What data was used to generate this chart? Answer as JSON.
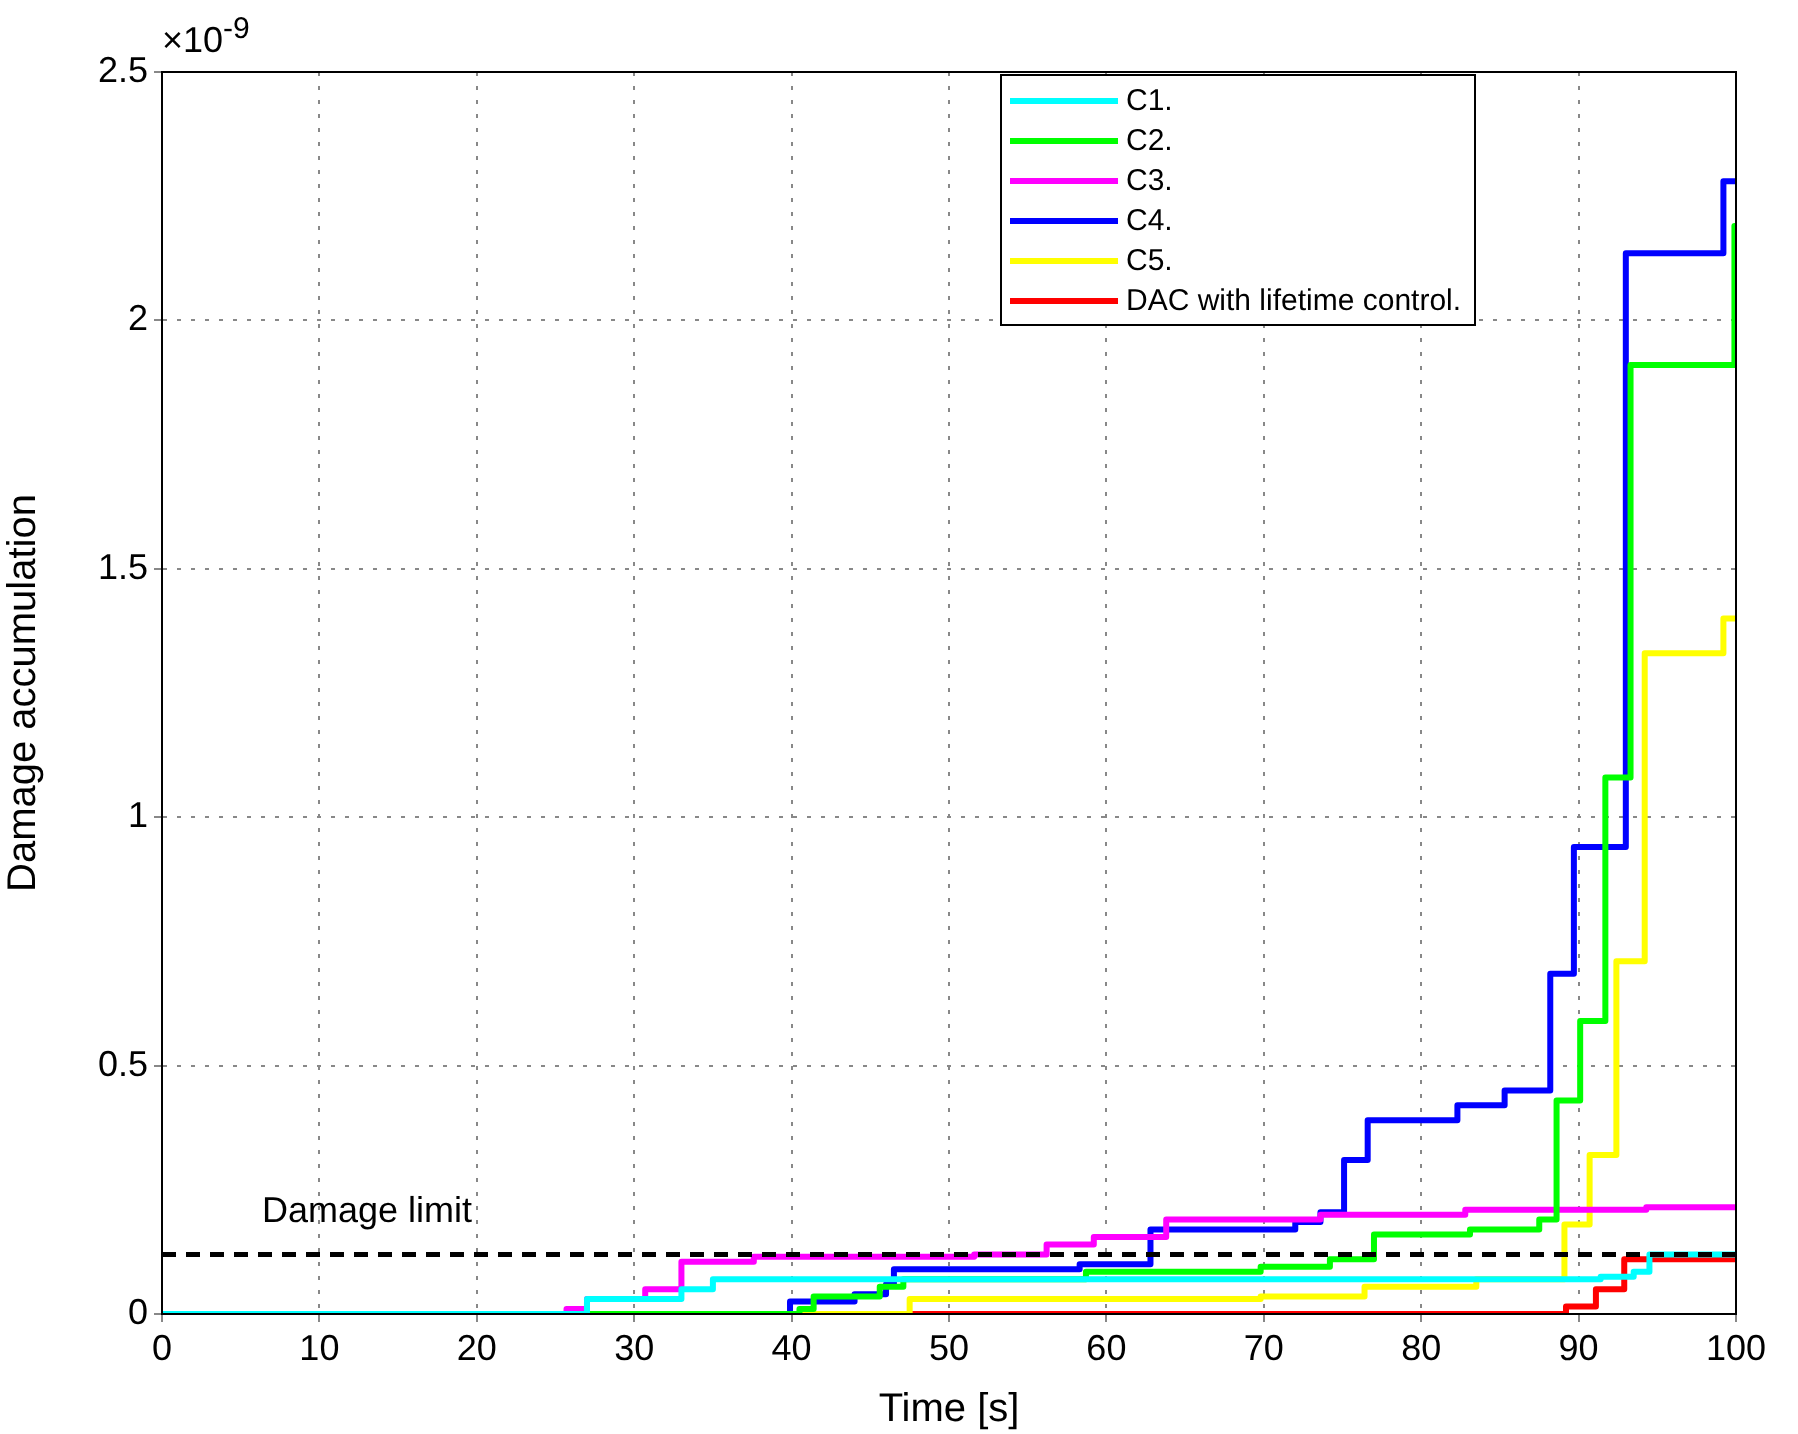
{
  "chart_data": {
    "type": "step",
    "xlabel": "Time [s]",
    "ylabel": "Damage accumulation",
    "annotations": [
      "×10$^{-9}$"
    ],
    "xlim": [
      0,
      100
    ],
    "xticks": [
      0,
      10,
      20,
      30,
      40,
      50,
      60,
      70,
      80,
      90,
      100
    ],
    "ylim": [
      0,
      2.5
    ],
    "yticks": [
      0,
      0.5,
      1,
      1.5,
      2,
      2.5
    ],
    "grid": true,
    "legend": "top right",
    "line_style": "solid",
    "marker": "none",
    "ref_lines": [
      {
        "axis": "y",
        "value": 0.12,
        "label": "Damage limit",
        "color": "#000000",
        "line_style": "dashed"
      }
    ],
    "series": [
      {
        "name": "C1.",
        "color": "#00ffff",
        "x": [
          0,
          27,
          33,
          35,
          91.4,
          93.5,
          94.5,
          100
        ],
        "values": [
          0,
          0.03,
          0.05,
          0.07,
          0.075,
          0.085,
          0.12,
          0.12
        ]
      },
      {
        "name": "C2.",
        "color": "#00ff00",
        "x": [
          0,
          40.5,
          41.4,
          45.6,
          47.1,
          58.7,
          69.8,
          74.2,
          77,
          83.1,
          87.5,
          88.6,
          90.1,
          91.7,
          93.3,
          99.9,
          100
        ],
        "values": [
          0,
          0.01,
          0.035,
          0.055,
          0.07,
          0.085,
          0.095,
          0.11,
          0.16,
          0.17,
          0.19,
          0.43,
          0.59,
          1.08,
          1.91,
          2.19,
          2.19
        ]
      },
      {
        "name": "C3.",
        "color": "#ff00ff",
        "x": [
          0,
          25.7,
          27,
          30.7,
          33,
          37.6,
          51.6,
          56.2,
          59.2,
          63.8,
          73.6,
          82.8,
          94.3,
          100
        ],
        "values": [
          0,
          0.01,
          0.03,
          0.05,
          0.105,
          0.115,
          0.12,
          0.14,
          0.155,
          0.19,
          0.2,
          0.21,
          0.215,
          0.215
        ]
      },
      {
        "name": "C4.",
        "color": "#0000ff",
        "x": [
          0,
          39.9,
          44,
          46,
          46.5,
          58.3,
          62.8,
          72,
          73.6,
          75.1,
          76.6,
          82.3,
          85.3,
          88.2,
          89.7,
          93,
          99.2,
          100
        ],
        "values": [
          0,
          0.025,
          0.04,
          0.06,
          0.09,
          0.1,
          0.17,
          0.185,
          0.205,
          0.31,
          0.39,
          0.42,
          0.45,
          0.685,
          0.94,
          2.135,
          2.28,
          2.28
        ]
      },
      {
        "name": "C5.",
        "color": "#ffff00",
        "x": [
          0,
          47.5,
          69.8,
          76.4,
          83.5,
          89.1,
          90.7,
          92.4,
          94.2,
          99.2,
          100
        ],
        "values": [
          0,
          0.03,
          0.035,
          0.055,
          0.07,
          0.18,
          0.32,
          0.71,
          1.33,
          1.4,
          1.4
        ]
      },
      {
        "name": "DAC with lifetime control.",
        "color": "#ff0000",
        "x": [
          0,
          89.2,
          91.1,
          92.9,
          100
        ],
        "values": [
          0,
          0.015,
          0.05,
          0.11,
          0.11
        ]
      }
    ]
  }
}
